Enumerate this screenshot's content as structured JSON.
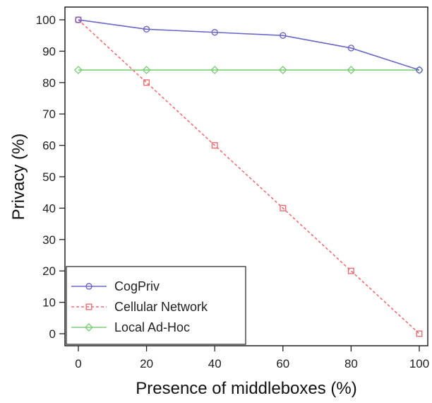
{
  "chart_data": {
    "type": "line",
    "title": "",
    "xlabel": "Presence of middleboxes (%)",
    "ylabel": "Privacy (%)",
    "xlim": [
      0,
      100
    ],
    "ylim": [
      0,
      100
    ],
    "x_ticks": [
      0,
      20,
      40,
      60,
      80,
      100
    ],
    "y_ticks": [
      0,
      10,
      20,
      30,
      40,
      50,
      60,
      70,
      80,
      90,
      100
    ],
    "grid": false,
    "legend_position": "bottom-left",
    "x": [
      0,
      20,
      40,
      60,
      80,
      100
    ],
    "series": [
      {
        "name": "CogPriv",
        "values": [
          100,
          97,
          96,
          95,
          91,
          84
        ],
        "color": "#6b66c8",
        "marker": "circle",
        "dash": "solid"
      },
      {
        "name": "Cellular Network",
        "values": [
          100,
          80,
          60,
          40,
          20,
          0
        ],
        "color": "#ef6f73",
        "marker": "square",
        "dash": "dashed"
      },
      {
        "name": "Local Ad-Hoc",
        "values": [
          84,
          84,
          84,
          84,
          84,
          84
        ],
        "color": "#7fcf7a",
        "marker": "diamond",
        "dash": "solid"
      }
    ]
  }
}
